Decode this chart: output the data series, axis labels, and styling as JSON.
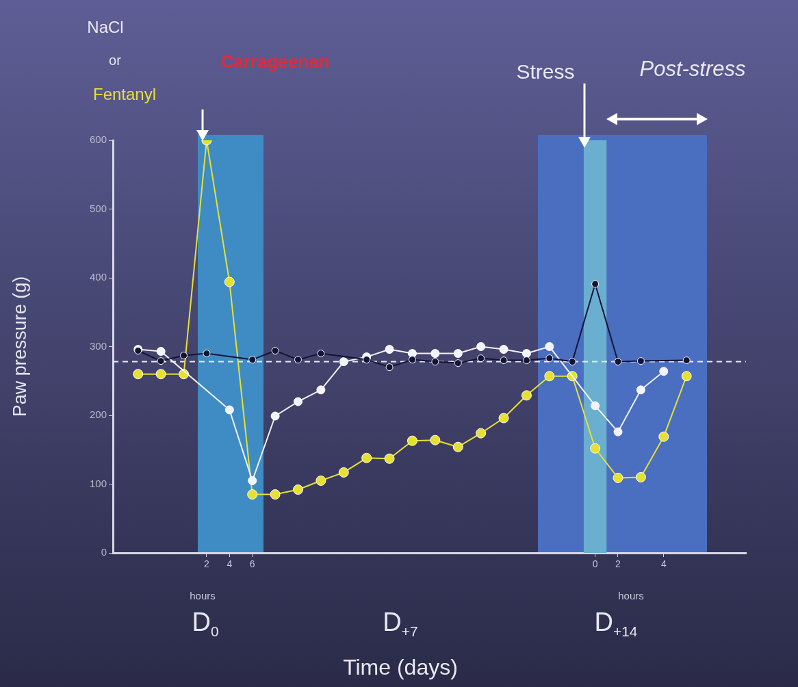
{
  "chart_data": {
    "type": "line",
    "xlabel": "Time (days)",
    "ylabel": "Paw pressure (g)",
    "categories": [
      null,
      null,
      null,
      "2",
      "4",
      "6",
      null,
      null,
      null,
      null,
      null,
      null,
      null,
      null,
      null,
      null,
      null,
      null,
      null,
      null,
      "0",
      "2",
      null,
      "4",
      null
    ],
    "ylim": [
      0,
      600
    ],
    "yticks": [
      0,
      100,
      200,
      300,
      400,
      500,
      600
    ],
    "marker": "circle",
    "series": [
      {
        "color": "#e6e033",
        "values": [
          260,
          260,
          260,
          600,
          394,
          85,
          85,
          92,
          105,
          117,
          138,
          137,
          163,
          164,
          154,
          174,
          196,
          229,
          257,
          257,
          152,
          109,
          110,
          169,
          257
        ]
      },
      {
        "color": "#f2f4fa",
        "values": [
          296,
          293,
          null,
          null,
          208,
          105,
          199,
          220,
          237,
          278,
          285,
          296,
          290,
          290,
          290,
          300,
          296,
          290,
          300,
          null,
          214,
          176,
          237,
          264,
          null
        ]
      },
      {
        "color": "#141436",
        "values": [
          294,
          279,
          287,
          290,
          null,
          281,
          294,
          281,
          290,
          null,
          281,
          270,
          281,
          278,
          276,
          283,
          280,
          280,
          283,
          278,
          391,
          278,
          279,
          null,
          280
        ]
      }
    ],
    "bands": [
      {
        "axis": "x",
        "from": "0",
        "to": "0",
        "color": "#6aaed0"
      }
    ],
    "ref_lines": [
      {
        "axis": "y",
        "value": 278,
        "color": "#e8ecff",
        "line_style": "dashed"
      }
    ],
    "annotations": [
      "NaCl",
      "or",
      "Fentanyl",
      "Carrageenan",
      "Stress",
      "Post-stress",
      "hours",
      "hours",
      "D$_{0}$",
      "D$_{+7}$",
      "D$_{+14}$"
    ]
  }
}
